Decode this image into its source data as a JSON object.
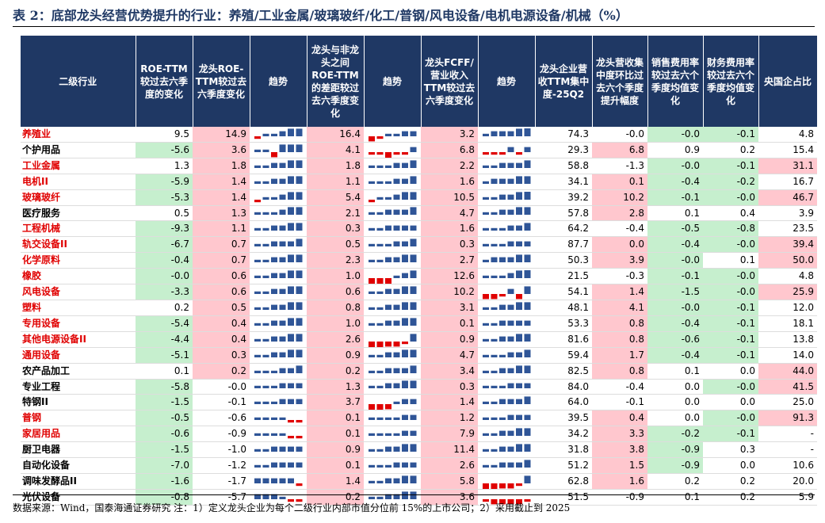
{
  "title": "表 2：底部龙头经营优势提升的行业：养殖/工业金属/玻璃玻纤/化工/普钢/风电设备/电机电源设备/机械（%）",
  "headers": [
    "二级行业",
    "ROE-TTM较过去六季度的变化",
    "龙头ROE-TTM较过去六季度变化",
    "趋势",
    "龙头与非龙头之间ROE-TTM的差距较过去六季度变化",
    "趋势",
    "龙头FCFF/营业收入TTM较过去六季度变化",
    "趋势",
    "龙头企业营收TTM集中度-25Q2",
    "龙头营收集中度环比过去六个季度提升幅度",
    "销售费用率较过去六个季度均值变化",
    "财务费用率较过去六个季度均值变化",
    "央国企占比"
  ],
  "colors": {
    "header_bg": "#1f3864",
    "green": "#c6efce",
    "pink": "#ffc7ce",
    "red_text": "#e00000",
    "bar_blue": "#2f5597",
    "bar_red": "#e00000"
  },
  "rows": [
    {
      "name": "养殖业",
      "red": true,
      "c1": "9.5",
      "c2": "14.9",
      "c3": "16.4",
      "c4": "3.2",
      "c5": "74.3",
      "c6": "-0.0",
      "c7": "-0.0",
      "c8": "-0.1",
      "c9": "4.8",
      "bg": [
        "",
        "p",
        "p",
        "p",
        "",
        "",
        "g",
        "g",
        ""
      ],
      "s1": [
        -1,
        1,
        1,
        2,
        3,
        3
      ],
      "s2": [
        -2,
        -1,
        1,
        1,
        2,
        2
      ],
      "s3": [
        1,
        2,
        2,
        2,
        3,
        4
      ]
    },
    {
      "name": "个护用品",
      "red": false,
      "c1": "-5.6",
      "c2": "3.6",
      "c3": "4.1",
      "c4": "6.8",
      "c5": "29.3",
      "c6": "6.8",
      "c7": "0.9",
      "c8": "0.2",
      "c9": "15.4",
      "bg": [
        "g",
        "p",
        "p",
        "p",
        "",
        "p",
        "",
        "",
        ""
      ],
      "s1": [
        1,
        1,
        -2,
        3,
        3,
        3
      ],
      "s2": [
        -1,
        -1,
        -3,
        -1,
        -1,
        2
      ],
      "s3": [
        -1,
        -1,
        -1,
        2,
        -1,
        2
      ]
    },
    {
      "name": "工业金属",
      "red": true,
      "c1": "1.3",
      "c2": "1.8",
      "c3": "1.8",
      "c4": "2.2",
      "c5": "58.8",
      "c6": "-1.3",
      "c7": "-0.0",
      "c8": "-0.1",
      "c9": "31.1",
      "bg": [
        "",
        "p",
        "p",
        "p",
        "",
        "",
        "g",
        "g",
        "p"
      ],
      "s1": [
        1,
        1,
        2,
        2,
        3,
        3
      ],
      "s2": [
        1,
        1,
        1,
        2,
        2,
        3
      ],
      "s3": [
        1,
        1,
        2,
        2,
        2,
        3
      ]
    },
    {
      "name": "电机II",
      "red": true,
      "c1": "-5.9",
      "c2": "1.4",
      "c3": "1.1",
      "c4": "1.6",
      "c5": "34.1",
      "c6": "0.1",
      "c7": "-0.4",
      "c8": "-0.2",
      "c9": "16.7",
      "bg": [
        "g",
        "p",
        "p",
        "p",
        "",
        "p",
        "g",
        "g",
        ""
      ],
      "s1": [
        1,
        1,
        2,
        2,
        3,
        3
      ],
      "s2": [
        1,
        1,
        1,
        2,
        2,
        3
      ],
      "s3": [
        1,
        2,
        2,
        2,
        3,
        3
      ]
    },
    {
      "name": "玻璃玻纤",
      "red": true,
      "c1": "-5.3",
      "c2": "1.4",
      "c3": "5.4",
      "c4": "10.5",
      "c5": "39.2",
      "c6": "10.2",
      "c7": "-0.1",
      "c8": "-0.0",
      "c9": "46.7",
      "bg": [
        "g",
        "p",
        "p",
        "p",
        "",
        "p",
        "g",
        "g",
        "p"
      ],
      "s1": [
        -1,
        1,
        1,
        2,
        3,
        3
      ],
      "s2": [
        -1,
        1,
        1,
        2,
        3,
        3
      ],
      "s3": [
        1,
        1,
        2,
        2,
        3,
        4
      ]
    },
    {
      "name": "医疗服务",
      "red": false,
      "c1": "0.5",
      "c2": "1.3",
      "c3": "2.1",
      "c4": "4.7",
      "c5": "57.8",
      "c6": "2.8",
      "c7": "0.1",
      "c8": "0.4",
      "c9": "3.9",
      "bg": [
        "",
        "p",
        "p",
        "p",
        "",
        "p",
        "",
        "",
        ""
      ],
      "s1": [
        1,
        1,
        1,
        2,
        3,
        3
      ],
      "s2": [
        1,
        1,
        2,
        2,
        2,
        3
      ],
      "s3": [
        1,
        1,
        2,
        2,
        3,
        3
      ]
    },
    {
      "name": "工程机械",
      "red": true,
      "c1": "-9.3",
      "c2": "1.1",
      "c3": "0.3",
      "c4": "1.6",
      "c5": "64.2",
      "c6": "-0.4",
      "c7": "-0.5",
      "c8": "-0.8",
      "c9": "23.5",
      "bg": [
        "g",
        "p",
        "p",
        "p",
        "",
        "",
        "g",
        "g",
        ""
      ],
      "s1": [
        1,
        1,
        2,
        2,
        3,
        3
      ],
      "s2": [
        1,
        1,
        2,
        2,
        2,
        2
      ],
      "s3": [
        1,
        1,
        1,
        2,
        2,
        3
      ]
    },
    {
      "name": "轨交设备II",
      "red": true,
      "c1": "-6.7",
      "c2": "0.7",
      "c3": "0.5",
      "c4": "0.3",
      "c5": "87.7",
      "c6": "0.0",
      "c7": "-0.4",
      "c8": "-0.0",
      "c9": "39.4",
      "bg": [
        "g",
        "p",
        "p",
        "p",
        "",
        "p",
        "g",
        "g",
        "p"
      ],
      "s1": [
        1,
        1,
        2,
        2,
        2,
        3
      ],
      "s2": [
        1,
        1,
        1,
        2,
        2,
        3
      ],
      "s3": [
        1,
        1,
        1,
        2,
        2,
        2
      ]
    },
    {
      "name": "化学原料",
      "red": true,
      "c1": "-0.4",
      "c2": "0.7",
      "c3": "2.3",
      "c4": "2.7",
      "c5": "50.3",
      "c6": "3.9",
      "c7": "-0.0",
      "c8": "0.1",
      "c9": "50.0",
      "bg": [
        "g",
        "p",
        "p",
        "p",
        "",
        "p",
        "g",
        "",
        "p"
      ],
      "s1": [
        1,
        1,
        2,
        2,
        3,
        3
      ],
      "s2": [
        1,
        1,
        2,
        2,
        3,
        3
      ],
      "s3": [
        1,
        2,
        2,
        2,
        3,
        3
      ]
    },
    {
      "name": "橡胶",
      "red": true,
      "c1": "-0.0",
      "c2": "0.6",
      "c3": "1.0",
      "c4": "12.6",
      "c5": "21.5",
      "c6": "-0.3",
      "c7": "-0.1",
      "c8": "-0.0",
      "c9": "4.8",
      "bg": [
        "g",
        "p",
        "p",
        "p",
        "",
        "",
        "g",
        "g",
        ""
      ],
      "s1": [
        1,
        1,
        2,
        2,
        3,
        3
      ],
      "s2": [
        -3,
        -3,
        -3,
        1,
        2,
        3
      ],
      "s3": [
        1,
        1,
        1,
        2,
        3,
        4
      ]
    },
    {
      "name": "风电设备",
      "red": true,
      "c1": "-3.3",
      "c2": "0.6",
      "c3": "0.6",
      "c4": "10.2",
      "c5": "54.1",
      "c6": "1.4",
      "c7": "-1.5",
      "c8": "-0.0",
      "c9": "25.9",
      "bg": [
        "g",
        "p",
        "p",
        "p",
        "",
        "p",
        "g",
        "g",
        "p"
      ],
      "s1": [
        1,
        1,
        2,
        2,
        3,
        3
      ],
      "s2": [
        1,
        1,
        2,
        2,
        3,
        3
      ],
      "s3": [
        -2,
        -2,
        -1,
        2,
        -2,
        3
      ]
    },
    {
      "name": "塑料",
      "red": true,
      "c1": "0.2",
      "c2": "0.5",
      "c3": "0.8",
      "c4": "3.1",
      "c5": "48.1",
      "c6": "4.1",
      "c7": "-0.0",
      "c8": "-0.1",
      "c9": "12.0",
      "bg": [
        "",
        "p",
        "p",
        "p",
        "",
        "p",
        "g",
        "g",
        ""
      ],
      "s1": [
        1,
        1,
        2,
        2,
        3,
        3
      ],
      "s2": [
        1,
        1,
        2,
        2,
        3,
        3
      ],
      "s3": [
        1,
        1,
        2,
        2,
        3,
        3
      ]
    },
    {
      "name": "专用设备",
      "red": true,
      "c1": "-5.4",
      "c2": "0.4",
      "c3": "1.0",
      "c4": "0.1",
      "c5": "53.3",
      "c6": "0.8",
      "c7": "-0.4",
      "c8": "-0.1",
      "c9": "18.1",
      "bg": [
        "g",
        "p",
        "p",
        "p",
        "",
        "p",
        "g",
        "g",
        ""
      ],
      "s1": [
        1,
        1,
        2,
        2,
        3,
        3
      ],
      "s2": [
        1,
        1,
        2,
        2,
        3,
        3
      ],
      "s3": [
        1,
        1,
        2,
        2,
        2,
        2
      ]
    },
    {
      "name": "其他电源设备II",
      "red": true,
      "c1": "-4.4",
      "c2": "0.4",
      "c3": "2.6",
      "c4": "0.9",
      "c5": "81.6",
      "c6": "0.8",
      "c7": "-0.6",
      "c8": "-0.1",
      "c9": "13.8",
      "bg": [
        "g",
        "p",
        "p",
        "p",
        "",
        "p",
        "g",
        "g",
        ""
      ],
      "s1": [
        1,
        1,
        2,
        2,
        3,
        3
      ],
      "s2": [
        -3,
        -3,
        -2,
        -2,
        -1,
        3
      ],
      "s3": [
        1,
        1,
        2,
        2,
        3,
        3
      ]
    },
    {
      "name": "通用设备",
      "red": true,
      "c1": "-5.1",
      "c2": "0.3",
      "c3": "0.9",
      "c4": "4.7",
      "c5": "59.4",
      "c6": "1.7",
      "c7": "-0.4",
      "c8": "-0.1",
      "c9": "14.0",
      "bg": [
        "g",
        "p",
        "p",
        "p",
        "",
        "p",
        "g",
        "g",
        ""
      ],
      "s1": [
        1,
        1,
        2,
        2,
        3,
        3
      ],
      "s2": [
        1,
        1,
        2,
        2,
        3,
        3
      ],
      "s3": [
        1,
        1,
        1,
        2,
        2,
        3
      ]
    },
    {
      "name": "农产品加工",
      "red": false,
      "c1": "0.1",
      "c2": "0.2",
      "c3": "0.2",
      "c4": "3.4",
      "c5": "82.5",
      "c6": "0.8",
      "c7": "0.1",
      "c8": "0.0",
      "c9": "44.0",
      "bg": [
        "",
        "p",
        "p",
        "p",
        "",
        "p",
        "",
        "",
        "p"
      ],
      "s1": [
        1,
        1,
        1,
        2,
        2,
        3
      ],
      "s2": [
        1,
        1,
        2,
        2,
        2,
        3
      ],
      "s3": [
        1,
        1,
        2,
        2,
        3,
        3
      ]
    },
    {
      "name": "专业工程",
      "red": false,
      "c1": "-5.8",
      "c2": "-0.0",
      "c3": "1.3",
      "c4": "0.3",
      "c5": "84.0",
      "c6": "-0.4",
      "c7": "0.0",
      "c8": "-0.0",
      "c9": "41.5",
      "bg": [
        "g",
        "",
        "p",
        "p",
        "",
        "",
        "",
        "g",
        "p"
      ],
      "s1": [
        1,
        1,
        1,
        2,
        2,
        2
      ],
      "s2": [
        1,
        1,
        2,
        2,
        3,
        3
      ],
      "s3": [
        1,
        1,
        1,
        2,
        2,
        2
      ]
    },
    {
      "name": "特钢II",
      "red": false,
      "c1": "-1.5",
      "c2": "-0.1",
      "c3": "3.7",
      "c4": "1.4",
      "c5": "64.0",
      "c6": "-0.1",
      "c7": "0.0",
      "c8": "0.0",
      "c9": "25.0",
      "bg": [
        "g",
        "",
        "p",
        "p",
        "",
        "",
        "",
        "",
        ""
      ],
      "s1": [
        1,
        1,
        1,
        2,
        2,
        2
      ],
      "s2": [
        -3,
        -3,
        -2,
        1,
        2,
        2
      ],
      "s3": [
        1,
        1,
        2,
        2,
        2,
        3
      ]
    },
    {
      "name": "普钢",
      "red": true,
      "c1": "-0.5",
      "c2": "-0.6",
      "c3": "0.1",
      "c4": "1.2",
      "c5": "39.5",
      "c6": "0.4",
      "c7": "0.0",
      "c8": "-0.0",
      "c9": "91.3",
      "bg": [
        "g",
        "",
        "p",
        "p",
        "",
        "p",
        "",
        "g",
        "p"
      ],
      "s1": [
        1,
        1,
        1,
        1,
        -1,
        -1
      ],
      "s2": [
        1,
        1,
        1,
        1,
        2,
        2
      ],
      "s3": [
        1,
        1,
        1,
        2,
        2,
        2
      ]
    },
    {
      "name": "家居用品",
      "red": true,
      "c1": "-0.6",
      "c2": "-0.9",
      "c3": "0.1",
      "c4": "7.9",
      "c5": "34.2",
      "c6": "3.3",
      "c7": "-0.2",
      "c8": "-0.1",
      "c9": "-",
      "bg": [
        "g",
        "",
        "p",
        "p",
        "",
        "p",
        "g",
        "g",
        ""
      ],
      "s1": [
        1,
        1,
        1,
        1,
        -1,
        -1
      ],
      "s2": [
        1,
        1,
        1,
        1,
        2,
        2
      ],
      "s3": [
        1,
        1,
        2,
        2,
        3,
        3
      ]
    },
    {
      "name": "厨卫电器",
      "red": false,
      "c1": "-1.5",
      "c2": "-1.0",
      "c3": "0.9",
      "c4": "11.4",
      "c5": "31.8",
      "c6": "3.8",
      "c7": "-0.9",
      "c8": "0.3",
      "c9": "-",
      "bg": [
        "g",
        "",
        "p",
        "p",
        "",
        "p",
        "g",
        "",
        ""
      ],
      "s1": [
        1,
        1,
        2,
        2,
        2,
        2
      ],
      "s2": [
        1,
        1,
        2,
        2,
        3,
        3
      ],
      "s3": [
        1,
        1,
        2,
        2,
        3,
        3
      ]
    },
    {
      "name": "自动化设备",
      "red": false,
      "c1": "-7.0",
      "c2": "-1.2",
      "c3": "0.1",
      "c4": "2.6",
      "c5": "51.2",
      "c6": "1.5",
      "c7": "-0.9",
      "c8": "0.0",
      "c9": "10.6",
      "bg": [
        "g",
        "",
        "p",
        "p",
        "",
        "p",
        "g",
        "",
        ""
      ],
      "s1": [
        1,
        1,
        2,
        2,
        2,
        2
      ],
      "s2": [
        1,
        1,
        1,
        2,
        2,
        2
      ],
      "s3": [
        1,
        1,
        2,
        2,
        2,
        3
      ]
    },
    {
      "name": "调味发酵品II",
      "red": false,
      "c1": "-1.6",
      "c2": "-1.7",
      "c3": "1.4",
      "c4": "5.8",
      "c5": "62.8",
      "c6": "1.6",
      "c7": "0.2",
      "c8": "0.2",
      "c9": "20.0",
      "bg": [
        "g",
        "",
        "p",
        "p",
        "",
        "p",
        "",
        "",
        ""
      ],
      "s1": [
        2,
        2,
        2,
        2,
        2,
        -1
      ],
      "s2": [
        1,
        1,
        2,
        2,
        3,
        3
      ],
      "s3": [
        -3,
        -3,
        -2,
        -2,
        -1,
        3
      ]
    },
    {
      "name": "光伏设备",
      "red": false,
      "c1": "-0.8",
      "c2": "-5.7",
      "c3": "0.2",
      "c4": "3.6",
      "c5": "51.5",
      "c6": "-0.9",
      "c7": "0.1",
      "c8": "0.2",
      "c9": "5.9",
      "bg": [
        "g",
        "",
        "p",
        "p",
        "",
        "",
        "",
        "",
        ""
      ],
      "s1": [
        2,
        2,
        2,
        1,
        -1,
        -1
      ],
      "s2": [
        1,
        1,
        2,
        2,
        3,
        3
      ],
      "s3": [
        -1,
        -2,
        -2,
        -2,
        -2,
        -1
      ]
    }
  ],
  "footer": "数据来源：Wind，国泰海通证券研究  注：1）定义龙头企业为每个二级行业内部市值分位前 15%的上市公司；2）采用截止到 2025"
}
